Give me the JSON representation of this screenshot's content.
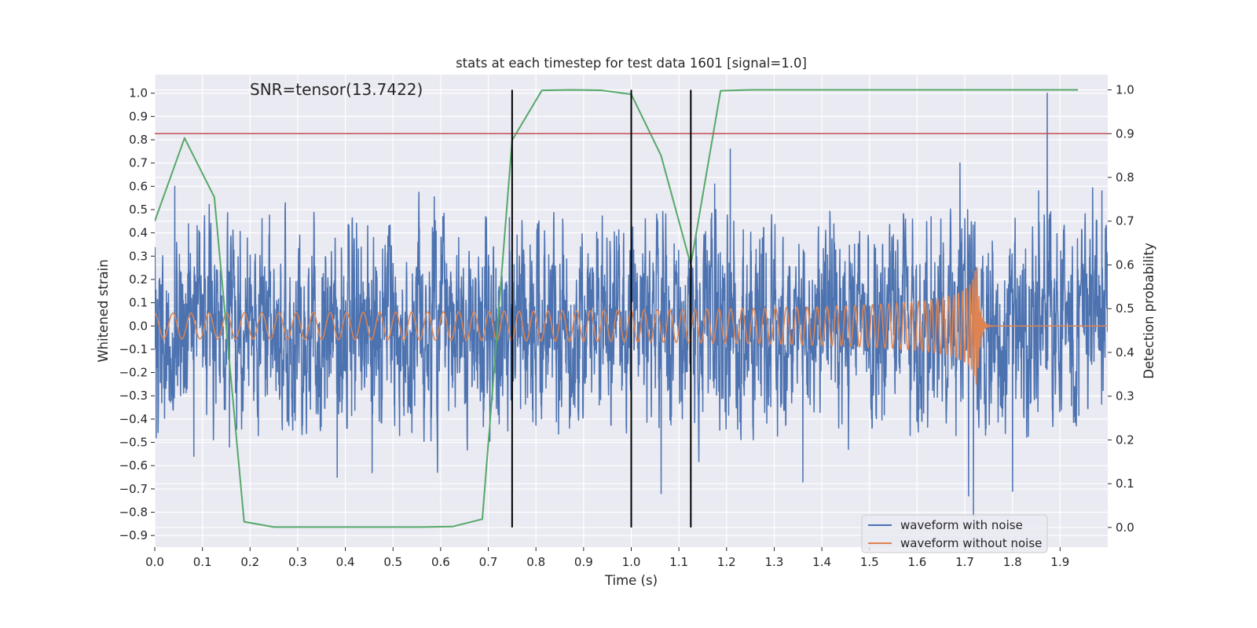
{
  "chart_data": {
    "type": "line",
    "title": "stats at each timestep for test data 1601 [signal=1.0]",
    "xlabel": "Time (s)",
    "ylabel": "Whitened strain",
    "ylabel_right": "Detection probability",
    "annotation": "SNR=tensor(13.7422)",
    "xlim": [
      0.0,
      2.0
    ],
    "ylim_left": [
      -0.95,
      1.08
    ],
    "ylim_right": [
      -0.045,
      1.035
    ],
    "x_ticks": [
      "0.0",
      "0.1",
      "0.2",
      "0.3",
      "0.4",
      "0.5",
      "0.6",
      "0.7",
      "0.8",
      "0.9",
      "1.0",
      "1.1",
      "1.2",
      "1.3",
      "1.4",
      "1.5",
      "1.6",
      "1.7",
      "1.8",
      "1.9"
    ],
    "y_ticks_left": [
      "−0.9",
      "−0.8",
      "−0.7",
      "−0.6",
      "−0.5",
      "−0.4",
      "−0.3",
      "−0.2",
      "−0.1",
      "0.0",
      "0.1",
      "0.2",
      "0.3",
      "0.4",
      "0.5",
      "0.6",
      "0.7",
      "0.8",
      "0.9",
      "1.0"
    ],
    "y_ticks_right": [
      "0.0",
      "0.1",
      "0.2",
      "0.3",
      "0.4",
      "0.5",
      "0.6",
      "0.7",
      "0.8",
      "0.9",
      "1.0"
    ],
    "grid": true,
    "legend_position": "lower-right",
    "colors": {
      "background": "#eaeaf2",
      "grid": "#ffffff",
      "noisy": "#4c72b0",
      "clean": "#dd8452",
      "probability": "#55a868",
      "threshold": "#c44e52",
      "markers": "#000000"
    },
    "series": [
      {
        "name": "waveform with noise",
        "axis": "left",
        "style": "noise",
        "samples": 4096,
        "peaks": [
          {
            "x": 0.003,
            "y": -0.48
          },
          {
            "x": 0.042,
            "y": 0.6
          },
          {
            "x": 0.082,
            "y": -0.56
          },
          {
            "x": 0.157,
            "y": -0.52
          },
          {
            "x": 0.383,
            "y": -0.65
          },
          {
            "x": 0.456,
            "y": -0.63
          },
          {
            "x": 1.063,
            "y": -0.72
          },
          {
            "x": 1.175,
            "y": 0.61
          },
          {
            "x": 1.208,
            "y": 0.76
          },
          {
            "x": 1.36,
            "y": -0.67
          },
          {
            "x": 1.69,
            "y": 0.7
          },
          {
            "x": 1.708,
            "y": -0.73
          },
          {
            "x": 1.718,
            "y": -0.82
          },
          {
            "x": 1.8,
            "y": -0.71
          },
          {
            "x": 1.855,
            "y": 0.58
          },
          {
            "x": 1.873,
            "y": 1.0
          },
          {
            "x": 1.988,
            "y": 0.58
          }
        ]
      },
      {
        "name": "waveform without noise",
        "axis": "left",
        "style": "chirp",
        "samples": 6000,
        "merger_time": 1.727,
        "amplitude_early": 0.055,
        "amplitude_peak": 0.35,
        "start_frequency_hz": 26
      },
      {
        "name": "",
        "axis": "right",
        "x": [
          0.0,
          0.0625,
          0.125,
          0.1875,
          0.25,
          0.3125,
          0.375,
          0.4375,
          0.5,
          0.5625,
          0.625,
          0.6875,
          0.75,
          0.8125,
          0.875,
          0.9375,
          1.0,
          1.0625,
          1.125,
          1.1875,
          1.25,
          1.3125,
          1.375,
          1.4375,
          1.5,
          1.5625,
          1.625,
          1.6875,
          1.75,
          1.8125,
          1.875,
          1.9375
        ],
        "y": [
          0.7,
          0.89,
          0.755,
          0.013,
          0.001,
          0.001,
          0.001,
          0.001,
          0.001,
          0.001,
          0.002,
          0.019,
          0.885,
          0.999,
          1.0,
          0.999,
          0.99,
          0.85,
          0.6,
          0.998,
          1.0,
          1.0,
          1.0,
          1.0,
          1.0,
          1.0,
          1.0,
          1.0,
          1.0,
          1.0,
          1.0,
          1.0
        ]
      },
      {
        "name": "",
        "axis": "right",
        "type": "hline",
        "y": 0.9
      }
    ],
    "vertical_markers": [
      0.75,
      1.0,
      1.125
    ],
    "vertical_markers_range_right": [
      0.0,
      1.0
    ],
    "legend": [
      "waveform with noise",
      "waveform without noise"
    ]
  }
}
